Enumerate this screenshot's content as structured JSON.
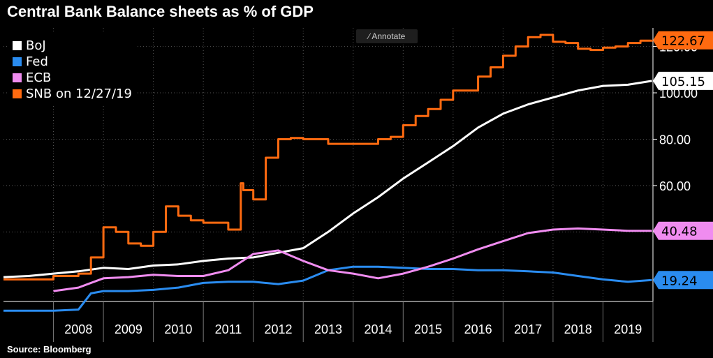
{
  "title": "Central Bank Balance sheets as % of GDP",
  "source": "Source:  Bloomberg",
  "annotate_label": "Annotate",
  "chart_data": {
    "type": "line",
    "title": "Central Bank Balance sheets as % of GDP",
    "xlabel": "",
    "ylabel": "",
    "x_ticks": [
      "2008",
      "2009",
      "2010",
      "2011",
      "2012",
      "2013",
      "2014",
      "2015",
      "2016",
      "2017",
      "2018",
      "2019"
    ],
    "xlim": [
      2007.0,
      2020.0
    ],
    "y_ticks": [
      "40.00",
      "60.00",
      "80.00",
      "100.00",
      "120.00"
    ],
    "ylim": [
      10,
      128
    ],
    "legend": "top-left",
    "grid": true,
    "series": [
      {
        "name": "BoJ",
        "color": "#ffffff",
        "last_value": "105.15",
        "x": [
          2007.0,
          2007.5,
          2008.0,
          2008.5,
          2009.0,
          2009.5,
          2010.0,
          2010.5,
          2011.0,
          2011.5,
          2012.0,
          2012.5,
          2013.0,
          2013.5,
          2014.0,
          2014.5,
          2015.0,
          2015.5,
          2016.0,
          2016.5,
          2017.0,
          2017.5,
          2018.0,
          2018.5,
          2019.0,
          2019.5,
          2019.98
        ],
        "y": [
          20.5,
          21.0,
          22.0,
          23.0,
          24.5,
          24.0,
          25.5,
          26.0,
          27.5,
          28.5,
          29.0,
          31.0,
          33.0,
          40.0,
          48.0,
          55.0,
          63.0,
          70.0,
          77.0,
          85.0,
          91.0,
          95.0,
          98.0,
          101.0,
          103.0,
          103.5,
          105.15
        ]
      },
      {
        "name": "Fed",
        "color": "#2a8cf0",
        "last_value": "19.24",
        "x": [
          2007.0,
          2007.5,
          2008.0,
          2008.5,
          2008.75,
          2009.0,
          2009.5,
          2010.0,
          2010.5,
          2011.0,
          2011.5,
          2012.0,
          2012.5,
          2013.0,
          2013.5,
          2014.0,
          2014.5,
          2015.0,
          2015.5,
          2016.0,
          2016.5,
          2017.0,
          2017.5,
          2018.0,
          2018.5,
          2019.0,
          2019.5,
          2019.98
        ],
        "y": [
          6.0,
          6.0,
          6.0,
          6.5,
          13.5,
          14.5,
          14.5,
          15.0,
          16.0,
          18.0,
          18.5,
          18.5,
          17.5,
          19.0,
          23.5,
          25.0,
          25.0,
          24.5,
          24.0,
          24.0,
          23.5,
          23.5,
          23.0,
          22.5,
          21.0,
          19.5,
          18.5,
          19.24
        ]
      },
      {
        "name": "ECB",
        "color": "#f08cf0",
        "last_value": "40.48",
        "x": [
          2008.0,
          2008.5,
          2009.0,
          2009.5,
          2010.0,
          2010.5,
          2011.0,
          2011.5,
          2012.0,
          2012.5,
          2013.0,
          2013.5,
          2014.0,
          2014.5,
          2015.0,
          2015.5,
          2016.0,
          2016.5,
          2017.0,
          2017.5,
          2018.0,
          2018.5,
          2019.0,
          2019.5,
          2019.98
        ],
        "y": [
          14.5,
          16.0,
          20.0,
          20.5,
          21.5,
          21.0,
          21.0,
          23.5,
          30.5,
          32.0,
          27.5,
          23.5,
          22.0,
          20.0,
          22.0,
          25.0,
          28.5,
          32.5,
          36.0,
          39.5,
          41.0,
          41.5,
          41.0,
          40.5,
          40.48
        ]
      },
      {
        "name": "SNB on 12/27/19",
        "color": "#ff6a10",
        "last_value": "122.67",
        "x": [
          2007.0,
          2007.5,
          2008.0,
          2008.5,
          2008.75,
          2009.0,
          2009.25,
          2009.5,
          2009.75,
          2010.0,
          2010.25,
          2010.5,
          2010.75,
          2011.0,
          2011.5,
          2011.75,
          2011.8,
          2012.0,
          2012.25,
          2012.5,
          2012.75,
          2013.0,
          2013.5,
          2014.0,
          2014.5,
          2014.75,
          2015.0,
          2015.25,
          2015.5,
          2015.75,
          2016.0,
          2016.5,
          2016.75,
          2017.0,
          2017.25,
          2017.5,
          2017.75,
          2018.0,
          2018.25,
          2018.5,
          2018.75,
          2019.0,
          2019.25,
          2019.5,
          2019.75,
          2019.98
        ],
        "y": [
          19.5,
          19.5,
          21.0,
          22.0,
          29.0,
          42.0,
          40.0,
          35.0,
          34.0,
          40.0,
          51.0,
          47.0,
          45.0,
          44.0,
          41.0,
          61.0,
          58.0,
          54.0,
          72.0,
          80.0,
          80.5,
          80.0,
          78.0,
          78.0,
          80.0,
          81.0,
          86.0,
          90.0,
          93.0,
          97.0,
          101.0,
          107.0,
          111.0,
          116.0,
          120.0,
          124.0,
          125.0,
          122.0,
          121.5,
          119.0,
          118.5,
          119.5,
          120.0,
          121.5,
          122.5,
          122.67
        ]
      }
    ]
  }
}
